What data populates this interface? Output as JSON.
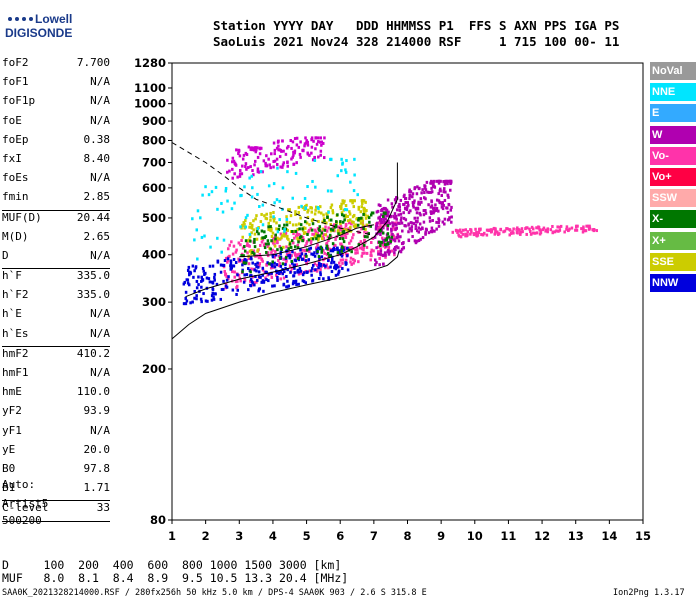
{
  "logo": {
    "line1": "Lowell",
    "line2": "DIGISONDE"
  },
  "header": {
    "line1": "Station YYYY DAY   DDD HHMMSS P1  FFS S AXN PPS IGA PS",
    "line2": "SaoLuis 2021 Nov24 328 214000 RSF     1 715 100 00- 11"
  },
  "params": {
    "group1": [
      {
        "name": "foF2",
        "value": "7.700"
      },
      {
        "name": "foF1",
        "value": "N/A"
      },
      {
        "name": "foF1p",
        "value": "N/A"
      },
      {
        "name": "foE",
        "value": "N/A"
      },
      {
        "name": "foEp",
        "value": "0.38"
      },
      {
        "name": "fxI",
        "value": "8.40"
      },
      {
        "name": "foEs",
        "value": "N/A"
      },
      {
        "name": "fmin",
        "value": "2.85"
      }
    ],
    "group2": [
      {
        "name": "MUF(D)",
        "value": "20.44"
      },
      {
        "name": "M(D)",
        "value": "2.65"
      },
      {
        "name": "D",
        "value": "N/A"
      }
    ],
    "group3": [
      {
        "name": "h`F",
        "value": "335.0"
      },
      {
        "name": "h`F2",
        "value": "335.0"
      },
      {
        "name": "h`E",
        "value": "N/A"
      },
      {
        "name": "h`Es",
        "value": "N/A"
      }
    ],
    "group4": [
      {
        "name": "hmF2",
        "value": "410.2"
      },
      {
        "name": "hmF1",
        "value": "N/A"
      },
      {
        "name": "hmE",
        "value": "110.0"
      },
      {
        "name": "yF2",
        "value": "93.9"
      },
      {
        "name": "yF1",
        "value": "N/A"
      },
      {
        "name": "yE",
        "value": "20.0"
      },
      {
        "name": "B0",
        "value": "97.8"
      },
      {
        "name": "B1",
        "value": "1.71"
      }
    ],
    "group5": [
      {
        "name": "C-level",
        "value": "33"
      }
    ]
  },
  "auto": {
    "line1": "Auto:",
    "line2": "Artist5",
    "line3": "500200"
  },
  "legend": [
    {
      "label": "NoVal",
      "color": "#999999"
    },
    {
      "label": "NNE",
      "color": "#00e5ff"
    },
    {
      "label": "E",
      "color": "#33aaff"
    },
    {
      "label": "W",
      "color": "#b000b0"
    },
    {
      "label": "Vo-",
      "color": "#ff33aa"
    },
    {
      "label": "Vo+",
      "color": "#ff0044"
    },
    {
      "label": "SSW",
      "color": "#ffaaaa"
    },
    {
      "label": "X-",
      "color": "#007700"
    },
    {
      "label": "X+",
      "color": "#66bb44"
    },
    {
      "label": "SSE",
      "color": "#cccc00"
    },
    {
      "label": "NNW",
      "color": "#0000dd"
    }
  ],
  "bottom": {
    "line1": "D     100  200  400  600  800 1000 1500 3000 [km]",
    "line2": "MUF   8.0  8.1  8.4  8.9  9.5 10.5 13.3 20.4 [MHz]"
  },
  "footer": "SAA0K_2021328214000.RSF / 280fx256h 50 kHz 5.0 km / DPS-4 SAA0K 903 / 2.6 S 315.8 E",
  "version": "Ion2Png 1.3.17",
  "chart_data": {
    "type": "scatter",
    "xlim": [
      1,
      15
    ],
    "ylim": [
      80,
      1280
    ],
    "xticks": [
      1,
      2,
      3,
      4,
      5,
      6,
      7,
      8,
      9,
      10,
      11,
      12,
      13,
      14,
      15
    ],
    "yticks": [
      80,
      200,
      300,
      400,
      500,
      600,
      700,
      800,
      900,
      1000,
      1100,
      1280
    ],
    "log_y": true,
    "grid": false,
    "curves": {
      "profile": [
        [
          1.0,
          240
        ],
        [
          1.5,
          262
        ],
        [
          2.0,
          280
        ],
        [
          3.0,
          300
        ],
        [
          4.0,
          318
        ],
        [
          5.0,
          333
        ],
        [
          6.0,
          348
        ],
        [
          7.0,
          365
        ],
        [
          7.4,
          375
        ],
        [
          7.7,
          395
        ],
        [
          7.75,
          410
        ]
      ],
      "trace_lower": [
        [
          1.4,
          310
        ],
        [
          2.0,
          325
        ],
        [
          3.0,
          345
        ],
        [
          4.0,
          360
        ],
        [
          5.0,
          378
        ],
        [
          6.0,
          400
        ],
        [
          6.5,
          420
        ],
        [
          7.0,
          445
        ],
        [
          7.4,
          490
        ],
        [
          7.7,
          560
        ],
        [
          7.7,
          700
        ]
      ],
      "trace_upper": [
        [
          3.0,
          395
        ],
        [
          4.0,
          400
        ],
        [
          5.0,
          420
        ],
        [
          6.0,
          450
        ],
        [
          6.5,
          470
        ],
        [
          7.0,
          480
        ]
      ],
      "muf_dashed": [
        [
          1.0,
          790
        ],
        [
          2.0,
          700
        ],
        [
          2.5,
          650
        ],
        [
          3.0,
          600
        ],
        [
          3.5,
          560
        ],
        [
          4.0,
          540
        ],
        [
          5.0,
          500
        ],
        [
          6.0,
          470
        ],
        [
          7.0,
          450
        ]
      ]
    },
    "echo_clusters": [
      {
        "name": "o-trace",
        "color": "#ff33aa",
        "x0": 2.5,
        "x1": 7.7,
        "y0": 330,
        "y1": 490,
        "n": 420
      },
      {
        "name": "x-trace",
        "color": "#0000dd",
        "x0": 1.3,
        "x1": 6.2,
        "y0": 300,
        "y1": 420,
        "n": 320
      },
      {
        "name": "spread-F",
        "color": "#b000b0",
        "x0": 7.0,
        "x1": 9.3,
        "y0": 380,
        "y1": 630,
        "n": 360
      },
      {
        "name": "multi",
        "color": "#cccc00",
        "x0": 3.0,
        "x1": 6.8,
        "y0": 400,
        "y1": 560,
        "n": 220
      },
      {
        "name": "green",
        "color": "#007700",
        "x0": 3.0,
        "x1": 7.5,
        "y0": 360,
        "y1": 520,
        "n": 160
      },
      {
        "name": "tail",
        "color": "#ff33aa",
        "x0": 9.3,
        "x1": 13.6,
        "y0": 450,
        "y1": 480,
        "n": 150
      },
      {
        "name": "second-hop",
        "color": "#cc00cc",
        "x0": 2.6,
        "x1": 5.5,
        "y0": 640,
        "y1": 820,
        "n": 160
      },
      {
        "name": "cyan",
        "color": "#00e5ff",
        "x0": 1.5,
        "x1": 6.5,
        "y0": 380,
        "y1": 720,
        "n": 90
      }
    ]
  }
}
